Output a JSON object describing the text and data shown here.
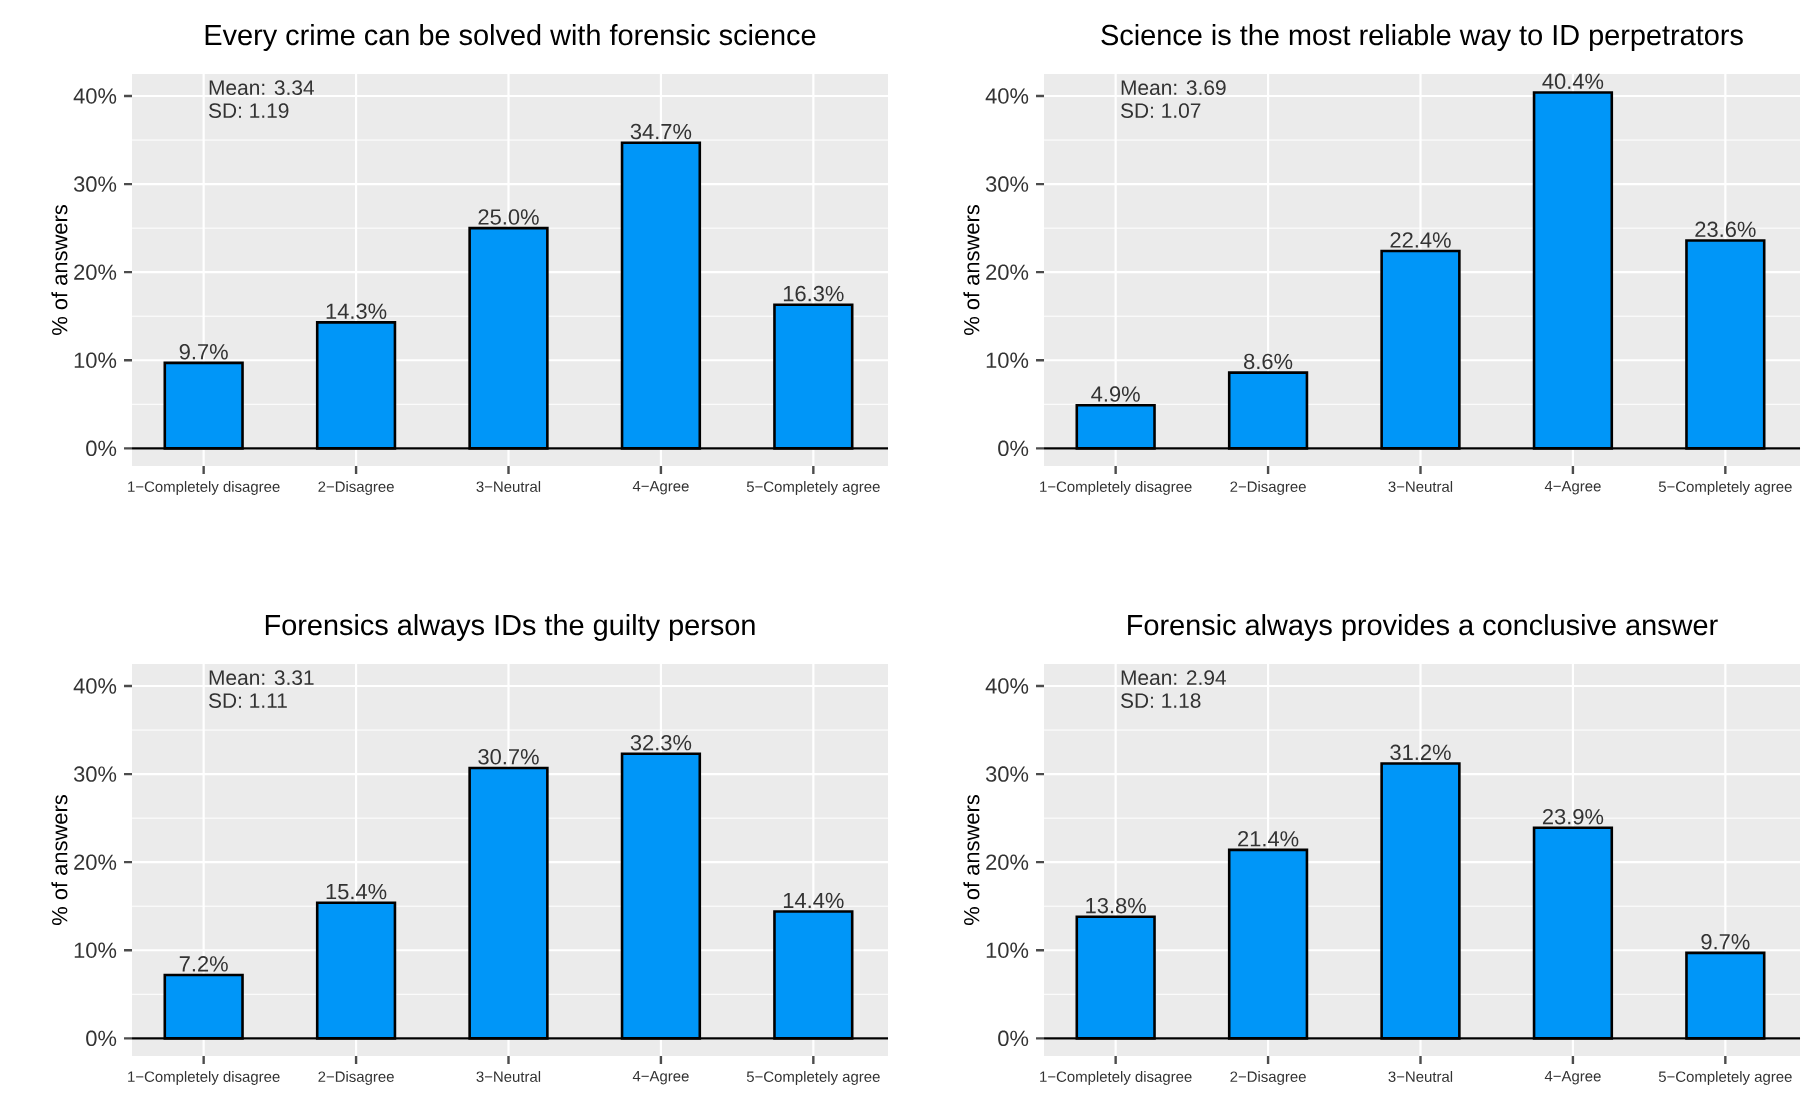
{
  "chart_data": [
    {
      "type": "bar",
      "title": "Every crime can be solved with forensic science",
      "ylabel": "% of answers",
      "annotations": [
        "Mean: 3.34",
        "SD: 1.19"
      ],
      "categories": [
        "1−Completely disagree",
        "2−Disagree",
        "3−Neutral",
        "4−Agree",
        "5−Completely agree"
      ],
      "values": [
        9.7,
        14.3,
        25.0,
        34.7,
        16.3
      ],
      "value_labels": [
        "9.7%",
        "14.3%",
        "25.0%",
        "34.7%",
        "16.3%"
      ],
      "color": "#0096f8",
      "ylim": [
        -2,
        42.5
      ],
      "yticks": [
        {
          "value": 0,
          "label": "0%"
        },
        {
          "value": 10,
          "label": "10%"
        },
        {
          "value": 20,
          "label": "20%"
        },
        {
          "value": 30,
          "label": "30%"
        },
        {
          "value": 40,
          "label": "40%"
        }
      ],
      "ref_lines": [
        {
          "axis": "y",
          "value": 0,
          "color": "#000000"
        }
      ],
      "grid": true
    },
    {
      "type": "bar",
      "title": "Science is the most reliable way to ID perpetrators",
      "ylabel": "% of answers",
      "annotations": [
        "Mean: 3.69",
        "SD: 1.07"
      ],
      "categories": [
        "1−Completely disagree",
        "2−Disagree",
        "3−Neutral",
        "4−Agree",
        "5−Completely agree"
      ],
      "values": [
        4.9,
        8.6,
        22.4,
        40.4,
        23.6
      ],
      "value_labels": [
        "4.9%",
        "8.6%",
        "22.4%",
        "40.4%",
        "23.6%"
      ],
      "color": "#0096f8",
      "ylim": [
        -2,
        42.5
      ],
      "yticks": [
        {
          "value": 0,
          "label": "0%"
        },
        {
          "value": 10,
          "label": "10%"
        },
        {
          "value": 20,
          "label": "20%"
        },
        {
          "value": 30,
          "label": "30%"
        },
        {
          "value": 40,
          "label": "40%"
        }
      ],
      "ref_lines": [
        {
          "axis": "y",
          "value": 0,
          "color": "#000000"
        }
      ],
      "grid": true
    },
    {
      "type": "bar",
      "title": "Forensics always IDs the guilty person",
      "ylabel": "% of answers",
      "annotations": [
        "Mean: 3.31",
        "SD: 1.11"
      ],
      "categories": [
        "1−Completely disagree",
        "2−Disagree",
        "3−Neutral",
        "4−Agree",
        "5−Completely agree"
      ],
      "values": [
        7.2,
        15.4,
        30.7,
        32.3,
        14.4
      ],
      "value_labels": [
        "7.2%",
        "15.4%",
        "30.7%",
        "32.3%",
        "14.4%"
      ],
      "color": "#0096f8",
      "ylim": [
        -2,
        42.5
      ],
      "yticks": [
        {
          "value": 0,
          "label": "0%"
        },
        {
          "value": 10,
          "label": "10%"
        },
        {
          "value": 20,
          "label": "20%"
        },
        {
          "value": 30,
          "label": "30%"
        },
        {
          "value": 40,
          "label": "40%"
        }
      ],
      "ref_lines": [
        {
          "axis": "y",
          "value": 0,
          "color": "#000000"
        }
      ],
      "grid": true
    },
    {
      "type": "bar",
      "title": "Forensic always provides a conclusive answer",
      "ylabel": "% of answers",
      "annotations": [
        "Mean: 2.94",
        "SD: 1.18"
      ],
      "categories": [
        "1−Completely disagree",
        "2−Disagree",
        "3−Neutral",
        "4−Agree",
        "5−Completely agree"
      ],
      "values": [
        13.8,
        21.4,
        31.2,
        23.9,
        9.7
      ],
      "value_labels": [
        "13.8%",
        "21.4%",
        "31.2%",
        "23.9%",
        "9.7%"
      ],
      "color": "#0096f8",
      "ylim": [
        -2,
        42.5
      ],
      "yticks": [
        {
          "value": 0,
          "label": "0%"
        },
        {
          "value": 10,
          "label": "10%"
        },
        {
          "value": 20,
          "label": "20%"
        },
        {
          "value": 30,
          "label": "30%"
        },
        {
          "value": 40,
          "label": "40%"
        }
      ],
      "ref_lines": [
        {
          "axis": "y",
          "value": 0,
          "color": "#000000"
        }
      ],
      "grid": true
    }
  ]
}
